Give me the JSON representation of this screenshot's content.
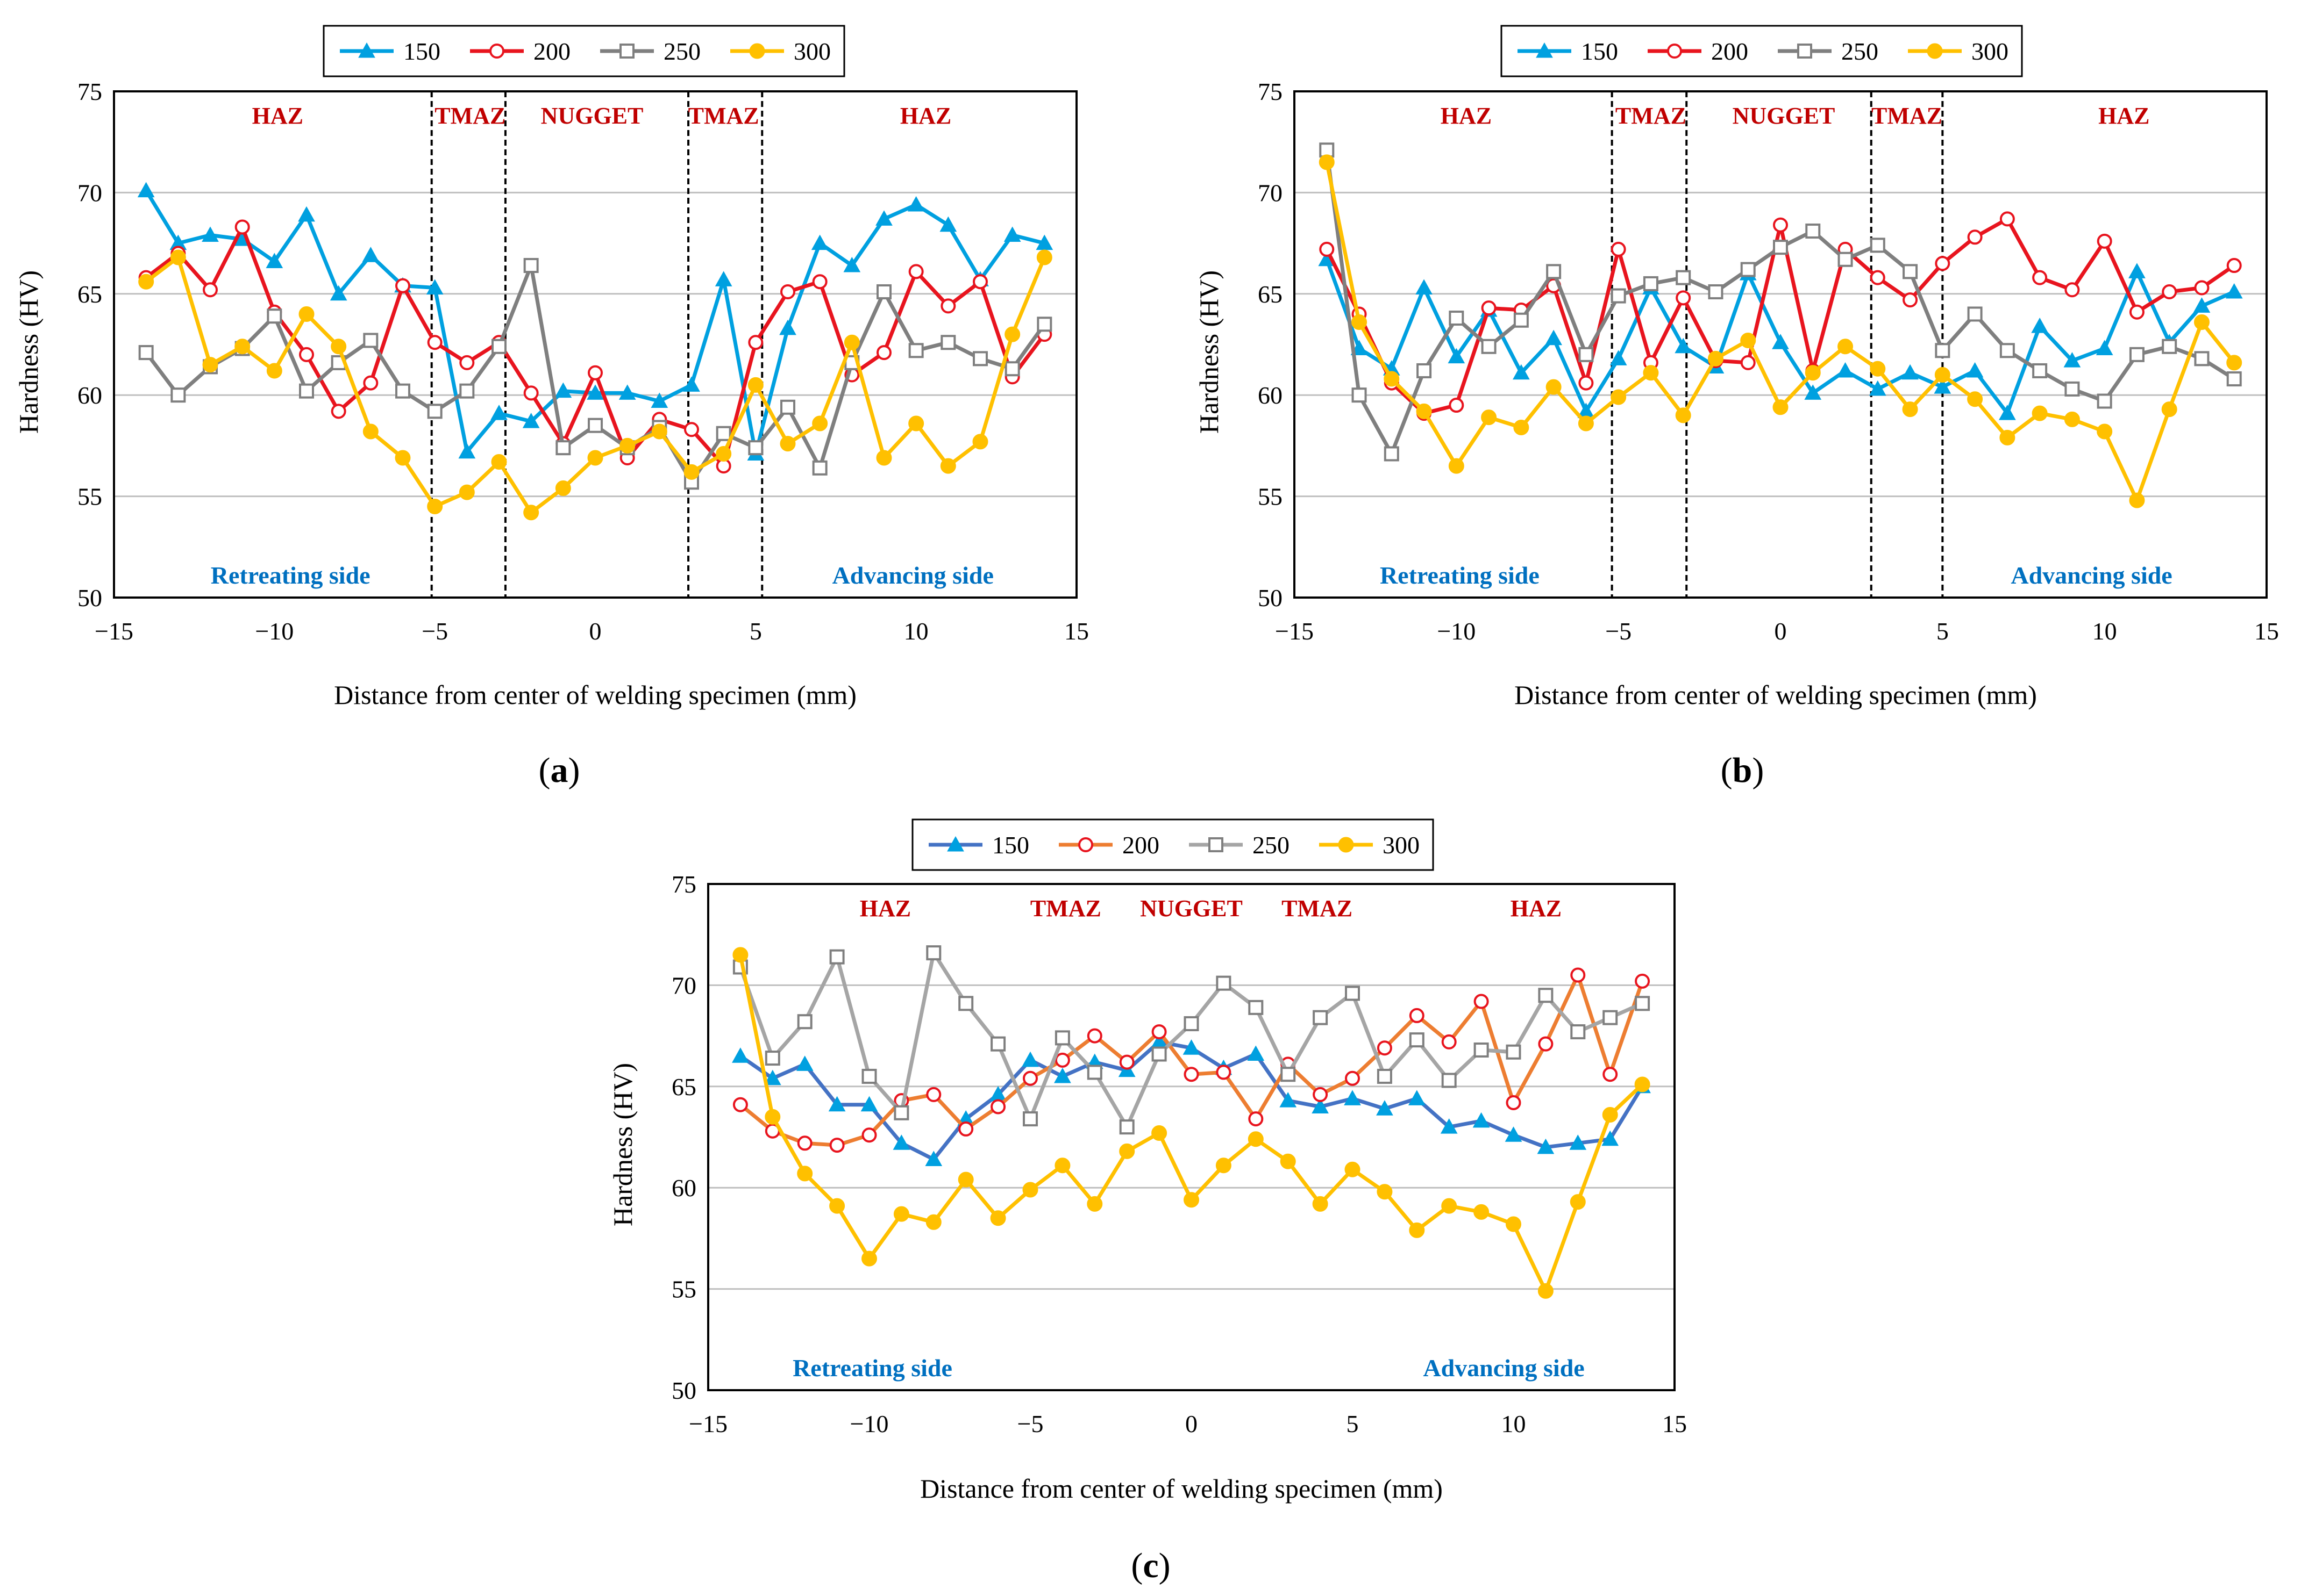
{
  "figure": {
    "caption_letters": [
      "a",
      "b",
      "c"
    ]
  },
  "chart_data": [
    {
      "id": "a",
      "type": "line",
      "caption": "a",
      "xlabel": "Distance from center of welding specimen (mm)",
      "ylabel": "Hardness (HV)",
      "xlim": [
        -15,
        15
      ],
      "ylim": [
        50,
        75
      ],
      "xticks": [
        "−15",
        "−10",
        "−5",
        "0",
        "5",
        "10",
        "15"
      ],
      "yticks": [
        "50",
        "55",
        "60",
        "65",
        "70",
        "75"
      ],
      "grid": "horizontal",
      "legend_position": "top-center",
      "zone_boundaries": [
        -5.1,
        -2.8,
        2.9,
        5.2
      ],
      "zone_labels": [
        {
          "text": "HAZ",
          "x": -9.9
        },
        {
          "text": "TMAZ",
          "x": -3.9
        },
        {
          "text": "NUGGET",
          "x": -0.1
        },
        {
          "text": "TMAZ",
          "x": 4.0
        },
        {
          "text": "HAZ",
          "x": 10.3
        }
      ],
      "side_labels": [
        {
          "text": "Retreating side",
          "x": -9.5
        },
        {
          "text": "Advancing side",
          "x": 9.9
        }
      ],
      "x": [
        -14,
        -13,
        -12,
        -11,
        -10,
        -9,
        -8,
        -7,
        -6,
        -5,
        -4,
        -3,
        -2,
        -1,
        0,
        1,
        2,
        3,
        4,
        5,
        6,
        7,
        8,
        9,
        10,
        11,
        12,
        13,
        14
      ],
      "series": [
        {
          "name": "150",
          "color": "#00A0E0",
          "marker": "triangle",
          "values": [
            70.1,
            67.5,
            67.9,
            67.7,
            66.6,
            68.9,
            65.0,
            66.9,
            65.4,
            65.3,
            57.2,
            59.1,
            58.7,
            60.2,
            60.1,
            60.1,
            59.7,
            60.5,
            65.7,
            57.1,
            63.3,
            67.5,
            66.4,
            68.7,
            69.4,
            68.4,
            65.7,
            67.9,
            67.5
          ]
        },
        {
          "name": "200",
          "color": "#E8141E",
          "marker": "circle-open",
          "values": [
            65.8,
            67.0,
            65.2,
            68.3,
            64.1,
            62.0,
            59.2,
            60.6,
            65.4,
            62.6,
            61.6,
            62.6,
            60.1,
            57.6,
            61.1,
            56.9,
            58.8,
            58.3,
            56.5,
            62.6,
            65.1,
            65.6,
            61.0,
            62.1,
            66.1,
            64.4,
            65.6,
            60.9,
            63.0
          ]
        },
        {
          "name": "250",
          "color": "#7F7F7F",
          "marker": "square-open",
          "values": [
            62.1,
            60.0,
            61.4,
            62.3,
            63.9,
            60.2,
            61.6,
            62.7,
            60.2,
            59.2,
            60.2,
            62.4,
            66.4,
            57.4,
            58.5,
            57.4,
            58.4,
            55.7,
            58.1,
            57.4,
            59.4,
            56.4,
            61.6,
            65.1,
            62.2,
            62.6,
            61.8,
            61.3,
            63.5
          ]
        },
        {
          "name": "300",
          "color": "#FFC000",
          "marker": "circle-filled",
          "values": [
            65.6,
            66.8,
            61.5,
            62.4,
            61.2,
            64.0,
            62.4,
            58.2,
            56.9,
            54.5,
            55.2,
            56.7,
            54.2,
            55.4,
            56.9,
            57.5,
            58.2,
            56.2,
            57.1,
            60.5,
            57.6,
            58.6,
            62.6,
            56.9,
            58.6,
            56.5,
            57.7,
            63.0,
            66.8
          ]
        }
      ]
    },
    {
      "id": "b",
      "type": "line",
      "caption": "b",
      "xlabel": "Distance from center of welding specimen (mm)",
      "ylabel": "Hardness (HV)",
      "xlim": [
        -15,
        15
      ],
      "ylim": [
        50,
        75
      ],
      "xticks": [
        "−15",
        "−10",
        "−5",
        "0",
        "5",
        "10",
        "15"
      ],
      "yticks": [
        "50",
        "55",
        "60",
        "65",
        "70",
        "75"
      ],
      "grid": "horizontal",
      "legend_position": "top-center",
      "zone_boundaries": [
        -5.2,
        -2.9,
        2.8,
        5.0
      ],
      "zone_labels": [
        {
          "text": "HAZ",
          "x": -9.7
        },
        {
          "text": "TMAZ",
          "x": -4.0
        },
        {
          "text": "NUGGET",
          "x": 0.1
        },
        {
          "text": "TMAZ",
          "x": 3.9
        },
        {
          "text": "HAZ",
          "x": 10.6
        }
      ],
      "side_labels": [
        {
          "text": "Retreating side",
          "x": -9.9
        },
        {
          "text": "Advancing side",
          "x": 9.6
        }
      ],
      "x": [
        -14,
        -13,
        -12,
        -11,
        -10,
        -9,
        -8,
        -7,
        -6,
        -5,
        -4,
        -3,
        -2,
        -1,
        0,
        1,
        2,
        3,
        4,
        5,
        6,
        7,
        8,
        9,
        10,
        11,
        12,
        13,
        14
      ],
      "series": [
        {
          "name": "150",
          "color": "#00A0E0",
          "marker": "triangle",
          "values": [
            66.7,
            62.3,
            61.3,
            65.3,
            61.9,
            64.2,
            61.1,
            62.8,
            59.2,
            61.8,
            65.3,
            62.4,
            61.4,
            66.0,
            62.6,
            60.1,
            61.2,
            60.3,
            61.1,
            60.4,
            61.2,
            59.1,
            63.4,
            61.7,
            62.3,
            66.1,
            62.6,
            64.4,
            65.1
          ]
        },
        {
          "name": "200",
          "color": "#E8141E",
          "marker": "circle-open",
          "values": [
            67.2,
            64.0,
            60.6,
            59.1,
            59.5,
            64.3,
            64.2,
            65.4,
            60.6,
            67.2,
            61.6,
            64.8,
            61.7,
            61.6,
            68.4,
            61.2,
            67.2,
            65.8,
            64.7,
            66.5,
            67.8,
            68.7,
            65.8,
            65.2,
            67.6,
            64.1,
            65.1,
            65.3,
            66.4
          ]
        },
        {
          "name": "250",
          "color": "#7F7F7F",
          "marker": "square-open",
          "values": [
            72.1,
            60.0,
            57.1,
            61.2,
            63.8,
            62.4,
            63.7,
            66.1,
            62.0,
            64.9,
            65.5,
            65.8,
            65.1,
            66.2,
            67.3,
            68.1,
            66.7,
            67.4,
            66.1,
            62.2,
            64.0,
            62.2,
            61.2,
            60.3,
            59.7,
            62.0,
            62.4,
            61.8,
            60.8
          ]
        },
        {
          "name": "300",
          "color": "#FFC000",
          "marker": "circle-filled",
          "values": [
            71.5,
            63.6,
            60.8,
            59.2,
            56.5,
            58.9,
            58.4,
            60.4,
            58.6,
            59.9,
            61.1,
            59.0,
            61.8,
            62.7,
            59.4,
            61.1,
            62.4,
            61.3,
            59.3,
            61.0,
            59.8,
            57.9,
            59.1,
            58.8,
            58.2,
            54.8,
            59.3,
            63.6,
            61.6
          ]
        }
      ]
    },
    {
      "id": "c",
      "type": "line",
      "caption": "c",
      "xlabel": "Distance from center of welding specimen (mm)",
      "ylabel": "Hardness (HV)",
      "xlim": [
        -15,
        15
      ],
      "ylim": [
        50,
        75
      ],
      "xticks": [
        "−15",
        "−10",
        "−5",
        "0",
        "5",
        "10",
        "15"
      ],
      "yticks": [
        "50",
        "55",
        "60",
        "65",
        "70",
        "75"
      ],
      "grid": "horizontal",
      "legend_position": "top-center",
      "zone_boundaries": [],
      "zone_labels": [
        {
          "text": "HAZ",
          "x": -9.5
        },
        {
          "text": "TMAZ",
          "x": -3.9
        },
        {
          "text": "NUGGET",
          "x": 0.0
        },
        {
          "text": "TMAZ",
          "x": 3.9
        },
        {
          "text": "HAZ",
          "x": 10.7
        }
      ],
      "side_labels": [
        {
          "text": "Retreating side",
          "x": -9.9
        },
        {
          "text": "Advancing side",
          "x": 9.7
        }
      ],
      "x": [
        -14,
        -13,
        -12,
        -11,
        -10,
        -9,
        -8,
        -7,
        -6,
        -5,
        -4,
        -3,
        -2,
        -1,
        0,
        1,
        2,
        3,
        4,
        5,
        6,
        7,
        8,
        9,
        10,
        11,
        12,
        13,
        14
      ],
      "series": [
        {
          "name": "150",
          "color": "#4472C4",
          "marker": "triangle",
          "marker_color": "#00A0E0",
          "values": [
            66.5,
            65.4,
            66.1,
            64.1,
            64.1,
            62.2,
            61.4,
            63.4,
            64.6,
            66.3,
            65.5,
            66.2,
            65.8,
            67.2,
            66.9,
            65.9,
            66.6,
            64.3,
            64.0,
            64.4,
            63.9,
            64.4,
            63.0,
            63.3,
            62.6,
            62.0,
            62.2,
            62.4,
            65.0
          ]
        },
        {
          "name": "200",
          "color": "#ED7D31",
          "marker": "circle-open",
          "marker_color": "#E8141E",
          "values": [
            64.1,
            62.8,
            62.2,
            62.1,
            62.6,
            64.3,
            64.6,
            62.9,
            64.0,
            65.4,
            66.3,
            67.5,
            66.2,
            67.7,
            65.6,
            65.7,
            63.4,
            66.1,
            64.6,
            65.4,
            66.9,
            68.5,
            67.2,
            69.2,
            64.2,
            67.1,
            70.5,
            65.6,
            70.2
          ]
        },
        {
          "name": "250",
          "color": "#A5A5A5",
          "marker": "square-open",
          "marker_color": "#7F7F7F",
          "values": [
            70.9,
            66.4,
            68.2,
            71.4,
            65.5,
            63.7,
            71.6,
            69.1,
            67.1,
            63.4,
            67.4,
            65.7,
            63.0,
            66.6,
            68.1,
            70.1,
            68.9,
            65.6,
            68.4,
            69.6,
            65.5,
            67.3,
            65.3,
            66.8,
            66.7,
            69.5,
            67.7,
            68.4,
            69.1
          ]
        },
        {
          "name": "300",
          "color": "#FFC000",
          "marker": "circle-filled",
          "values": [
            71.5,
            63.5,
            60.7,
            59.1,
            56.5,
            58.7,
            58.3,
            60.4,
            58.5,
            59.9,
            61.1,
            59.2,
            61.8,
            62.7,
            59.4,
            61.1,
            62.4,
            61.3,
            59.2,
            60.9,
            59.8,
            57.9,
            59.1,
            58.8,
            58.2,
            54.9,
            59.3,
            63.6,
            65.1
          ]
        }
      ]
    }
  ]
}
